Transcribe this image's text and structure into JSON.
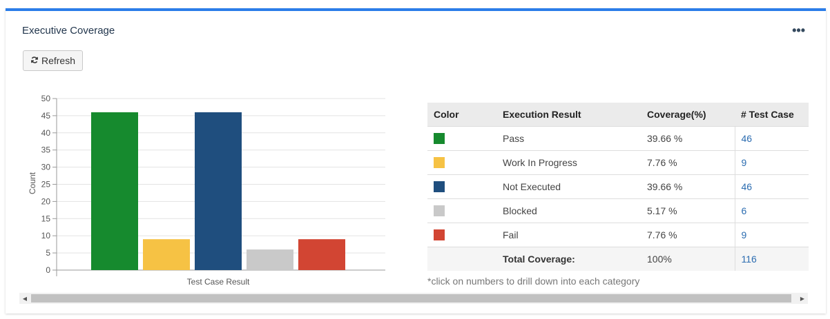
{
  "panel": {
    "title": "Executive Coverage",
    "menu_label": "•••"
  },
  "toolbar": {
    "refresh_label": "Refresh"
  },
  "chart_data": {
    "type": "bar",
    "categories": [
      "Pass",
      "Work In Progress",
      "Not Executed",
      "Blocked",
      "Fail"
    ],
    "values": [
      46,
      9,
      46,
      6,
      9
    ],
    "colors": [
      "#168a2e",
      "#f6c244",
      "#1f4e7e",
      "#c9c9c9",
      "#d24533"
    ],
    "xlabel": "Test Case Result",
    "ylabel": "Count",
    "ylim": [
      0,
      50
    ],
    "yticks": [
      0,
      5,
      10,
      15,
      20,
      25,
      30,
      35,
      40,
      45,
      50
    ],
    "grid": true
  },
  "table": {
    "headers": [
      "Color",
      "Execution Result",
      "Coverage(%)",
      "# Test Case"
    ],
    "rows": [
      {
        "color": "#168a2e",
        "result": "Pass",
        "coverage": "39.66 %",
        "count": "46"
      },
      {
        "color": "#f6c244",
        "result": "Work In Progress",
        "coverage": "7.76 %",
        "count": "9"
      },
      {
        "color": "#1f4e7e",
        "result": "Not Executed",
        "coverage": "39.66 %",
        "count": "46"
      },
      {
        "color": "#c9c9c9",
        "result": "Blocked",
        "coverage": "5.17 %",
        "count": "6"
      },
      {
        "color": "#d24533",
        "result": "Fail",
        "coverage": "7.76 %",
        "count": "9"
      }
    ],
    "total": {
      "label": "Total Coverage:",
      "coverage": "100%",
      "count": "116"
    }
  },
  "note": "*click on numbers to drill down into each category",
  "scrollbar": {
    "left_arrow": "◀",
    "right_arrow": "▶"
  }
}
